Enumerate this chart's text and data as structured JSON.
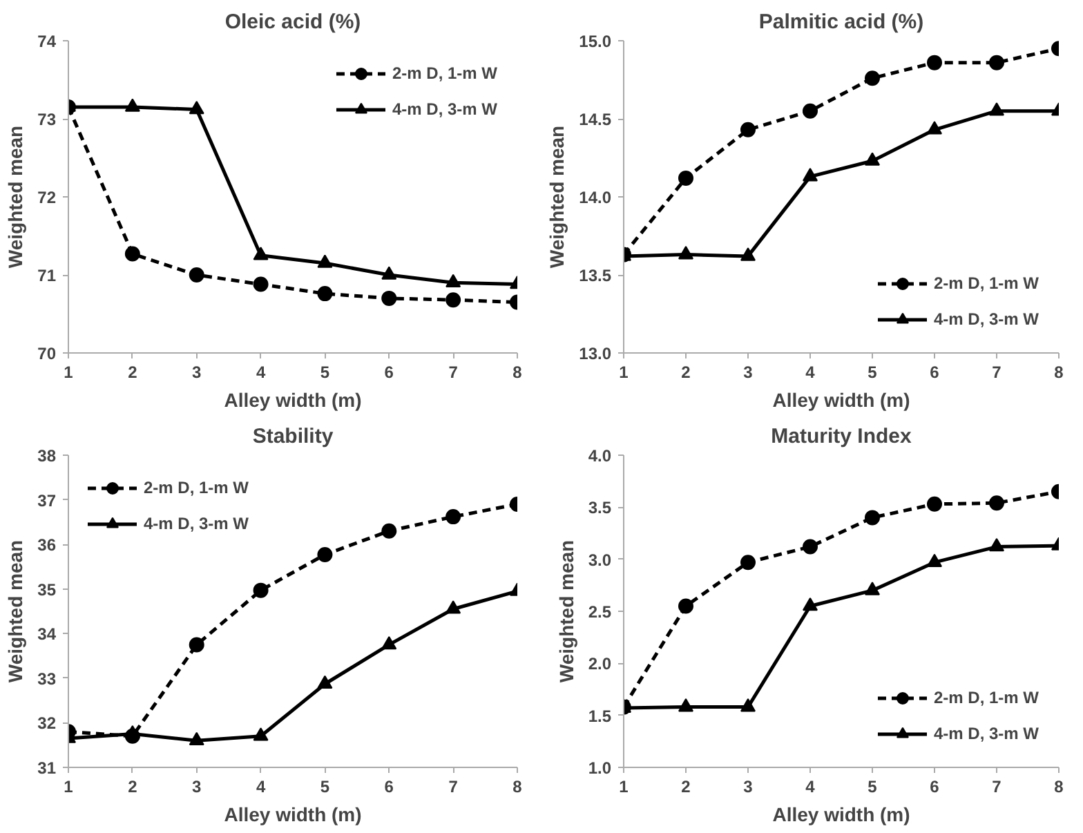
{
  "chart_data": [
    {
      "type": "line",
      "title": "Oleic acid (%)",
      "xlabel": "Alley width (m)",
      "ylabel": "Weighted mean",
      "x": [
        1,
        2,
        3,
        4,
        5,
        6,
        7,
        8
      ],
      "xlim": [
        1,
        8
      ],
      "xticks": [
        1,
        2,
        3,
        4,
        5,
        6,
        7,
        8
      ],
      "ylim": [
        70,
        74
      ],
      "yticks": [
        70,
        71,
        72,
        73,
        74
      ],
      "grid": false,
      "legend": "top right",
      "series": [
        {
          "name": "2-m D, 1-m W",
          "color": "#000000",
          "marker": "circle",
          "line_style": "dashed",
          "values": [
            73.15,
            71.27,
            71.0,
            70.88,
            70.76,
            70.7,
            70.68,
            70.65
          ]
        },
        {
          "name": "4-m D, 3-m W",
          "color": "#000000",
          "marker": "triangle",
          "line_style": "solid",
          "values": [
            73.15,
            73.15,
            73.12,
            71.25,
            71.15,
            71.0,
            70.9,
            70.88
          ]
        }
      ]
    },
    {
      "type": "line",
      "title": "Palmitic acid (%)",
      "xlabel": "Alley width (m)",
      "ylabel": "Weighted mean",
      "x": [
        1,
        2,
        3,
        4,
        5,
        6,
        7,
        8
      ],
      "xlim": [
        1,
        8
      ],
      "xticks": [
        1,
        2,
        3,
        4,
        5,
        6,
        7,
        8
      ],
      "ylim": [
        13,
        15
      ],
      "yticks": [
        {
          "value": 13,
          "label": "13.0"
        },
        13.5,
        {
          "value": 14,
          "label": "14.0"
        },
        14.5,
        {
          "value": 15,
          "label": "15.0"
        }
      ],
      "grid": false,
      "legend": "bottom right",
      "series": [
        {
          "name": "2-m D, 1-m W",
          "color": "#000000",
          "marker": "circle",
          "line_style": "dashed",
          "values": [
            13.63,
            14.12,
            14.43,
            14.55,
            14.76,
            14.86,
            14.86,
            14.95
          ]
        },
        {
          "name": "4-m D, 3-m W",
          "color": "#000000",
          "marker": "triangle",
          "line_style": "solid",
          "values": [
            13.62,
            13.63,
            13.62,
            14.13,
            14.23,
            14.43,
            14.55,
            14.55
          ]
        }
      ]
    },
    {
      "type": "line",
      "title": "Stability",
      "xlabel": "Alley width (m)",
      "ylabel": "Weighted mean",
      "x": [
        1,
        2,
        3,
        4,
        5,
        6,
        7,
        8
      ],
      "xlim": [
        1,
        8
      ],
      "xticks": [
        1,
        2,
        3,
        4,
        5,
        6,
        7,
        8
      ],
      "ylim": [
        31,
        38
      ],
      "yticks": [
        31,
        32,
        33,
        34,
        35,
        36,
        37,
        38
      ],
      "grid": false,
      "legend": "top left",
      "series": [
        {
          "name": "2-m D, 1-m W",
          "color": "#000000",
          "marker": "circle",
          "line_style": "dashed",
          "values": [
            31.8,
            31.7,
            33.75,
            34.97,
            35.77,
            36.3,
            36.62,
            36.9
          ]
        },
        {
          "name": "4-m D, 3-m W",
          "color": "#000000",
          "marker": "triangle",
          "line_style": "solid",
          "values": [
            31.65,
            31.75,
            31.6,
            31.7,
            32.87,
            33.75,
            34.55,
            34.95
          ]
        }
      ]
    },
    {
      "type": "line",
      "title": "Maturity Index",
      "xlabel": "Alley width (m)",
      "ylabel": "Weighted mean",
      "x": [
        1,
        2,
        3,
        4,
        5,
        6,
        7,
        8
      ],
      "xlim": [
        1,
        8
      ],
      "xticks": [
        1,
        2,
        3,
        4,
        5,
        6,
        7,
        8
      ],
      "ylim": [
        1,
        4
      ],
      "yticks": [
        {
          "value": 1,
          "label": "1.0"
        },
        1.5,
        {
          "value": 2,
          "label": "2.0"
        },
        2.5,
        {
          "value": 3,
          "label": "3.0"
        },
        3.5,
        {
          "value": 4,
          "label": "4.0"
        }
      ],
      "grid": false,
      "legend": "bottom right",
      "series": [
        {
          "name": "2-m D, 1-m W",
          "color": "#000000",
          "marker": "circle",
          "line_style": "dashed",
          "values": [
            1.58,
            2.55,
            2.97,
            3.12,
            3.4,
            3.53,
            3.54,
            3.65
          ]
        },
        {
          "name": "4-m D, 3-m W",
          "color": "#000000",
          "marker": "triangle",
          "line_style": "solid",
          "values": [
            1.57,
            1.58,
            1.58,
            2.55,
            2.7,
            2.97,
            3.12,
            3.13
          ]
        }
      ]
    }
  ]
}
